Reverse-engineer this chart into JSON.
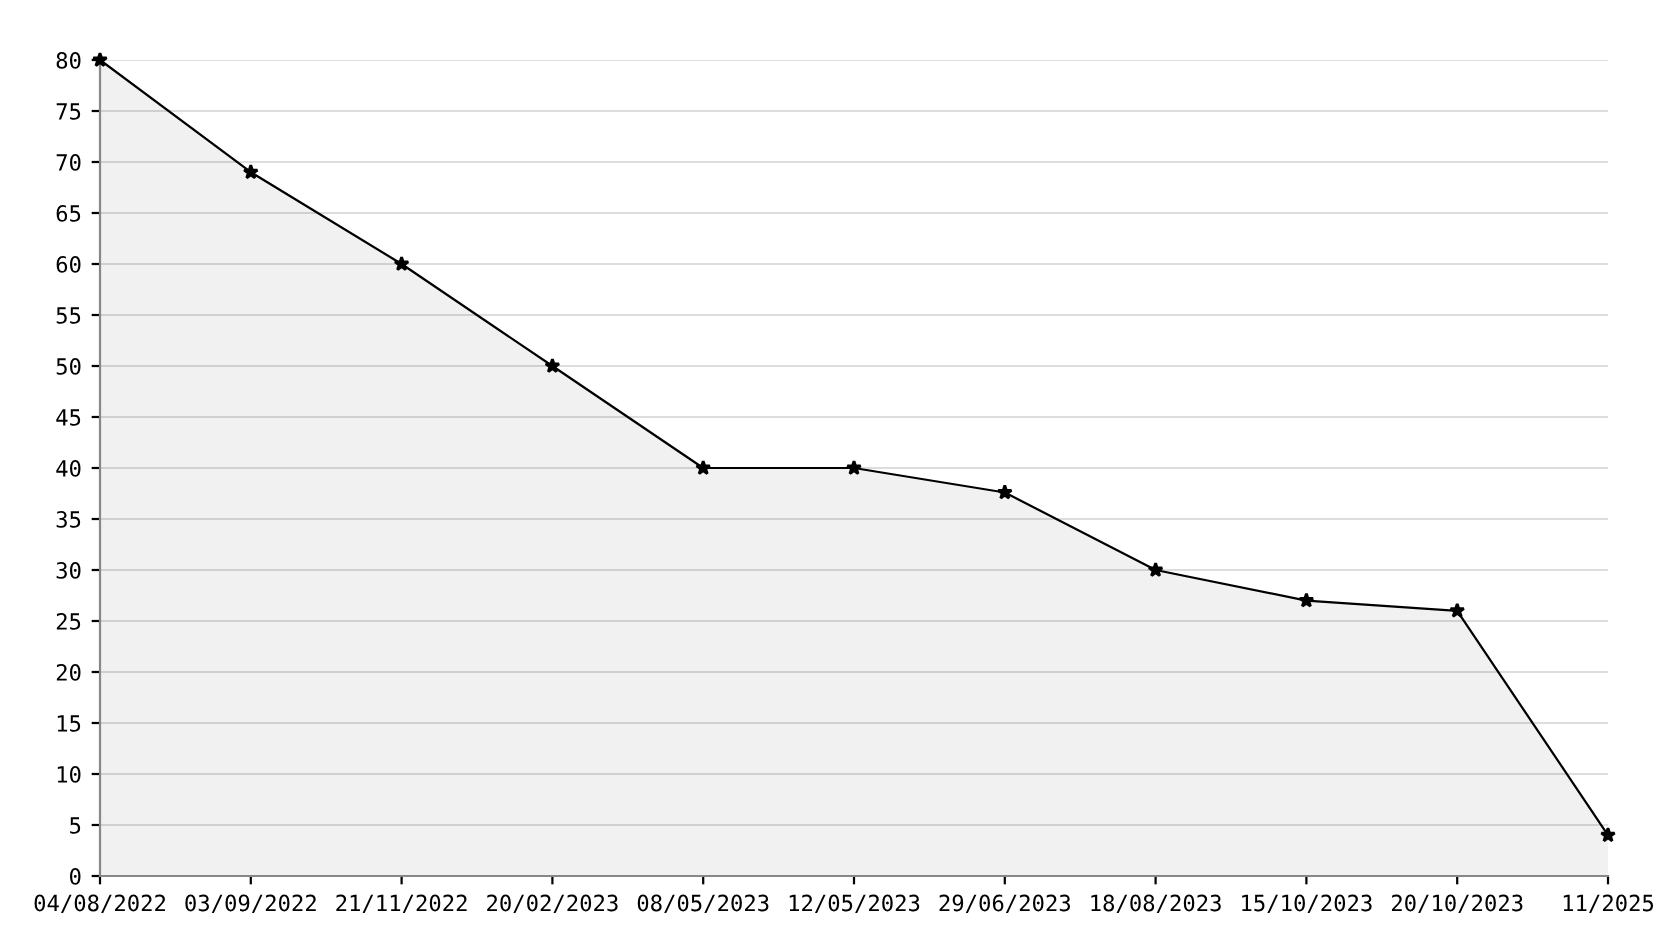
{
  "chart_data": {
    "type": "area",
    "categories": [
      "04/08/2022",
      "03/09/2022",
      "21/11/2022",
      "20/02/2023",
      "08/05/2023",
      "12/05/2023",
      "29/06/2023",
      "18/08/2023",
      "15/10/2023",
      "20/10/2023",
      "11/2025"
    ],
    "series": [
      {
        "color": "#000000",
        "values": [
          80,
          69,
          60,
          50,
          40,
          40,
          37.6,
          30,
          27,
          26,
          4
        ]
      }
    ],
    "ylim": [
      0,
      80
    ],
    "yticks": [
      0,
      5,
      10,
      15,
      20,
      25,
      30,
      35,
      40,
      45,
      50,
      55,
      60,
      65,
      70,
      75,
      80
    ],
    "grid": "y",
    "marker": "star",
    "line_style": "solid",
    "legend": false
  }
}
